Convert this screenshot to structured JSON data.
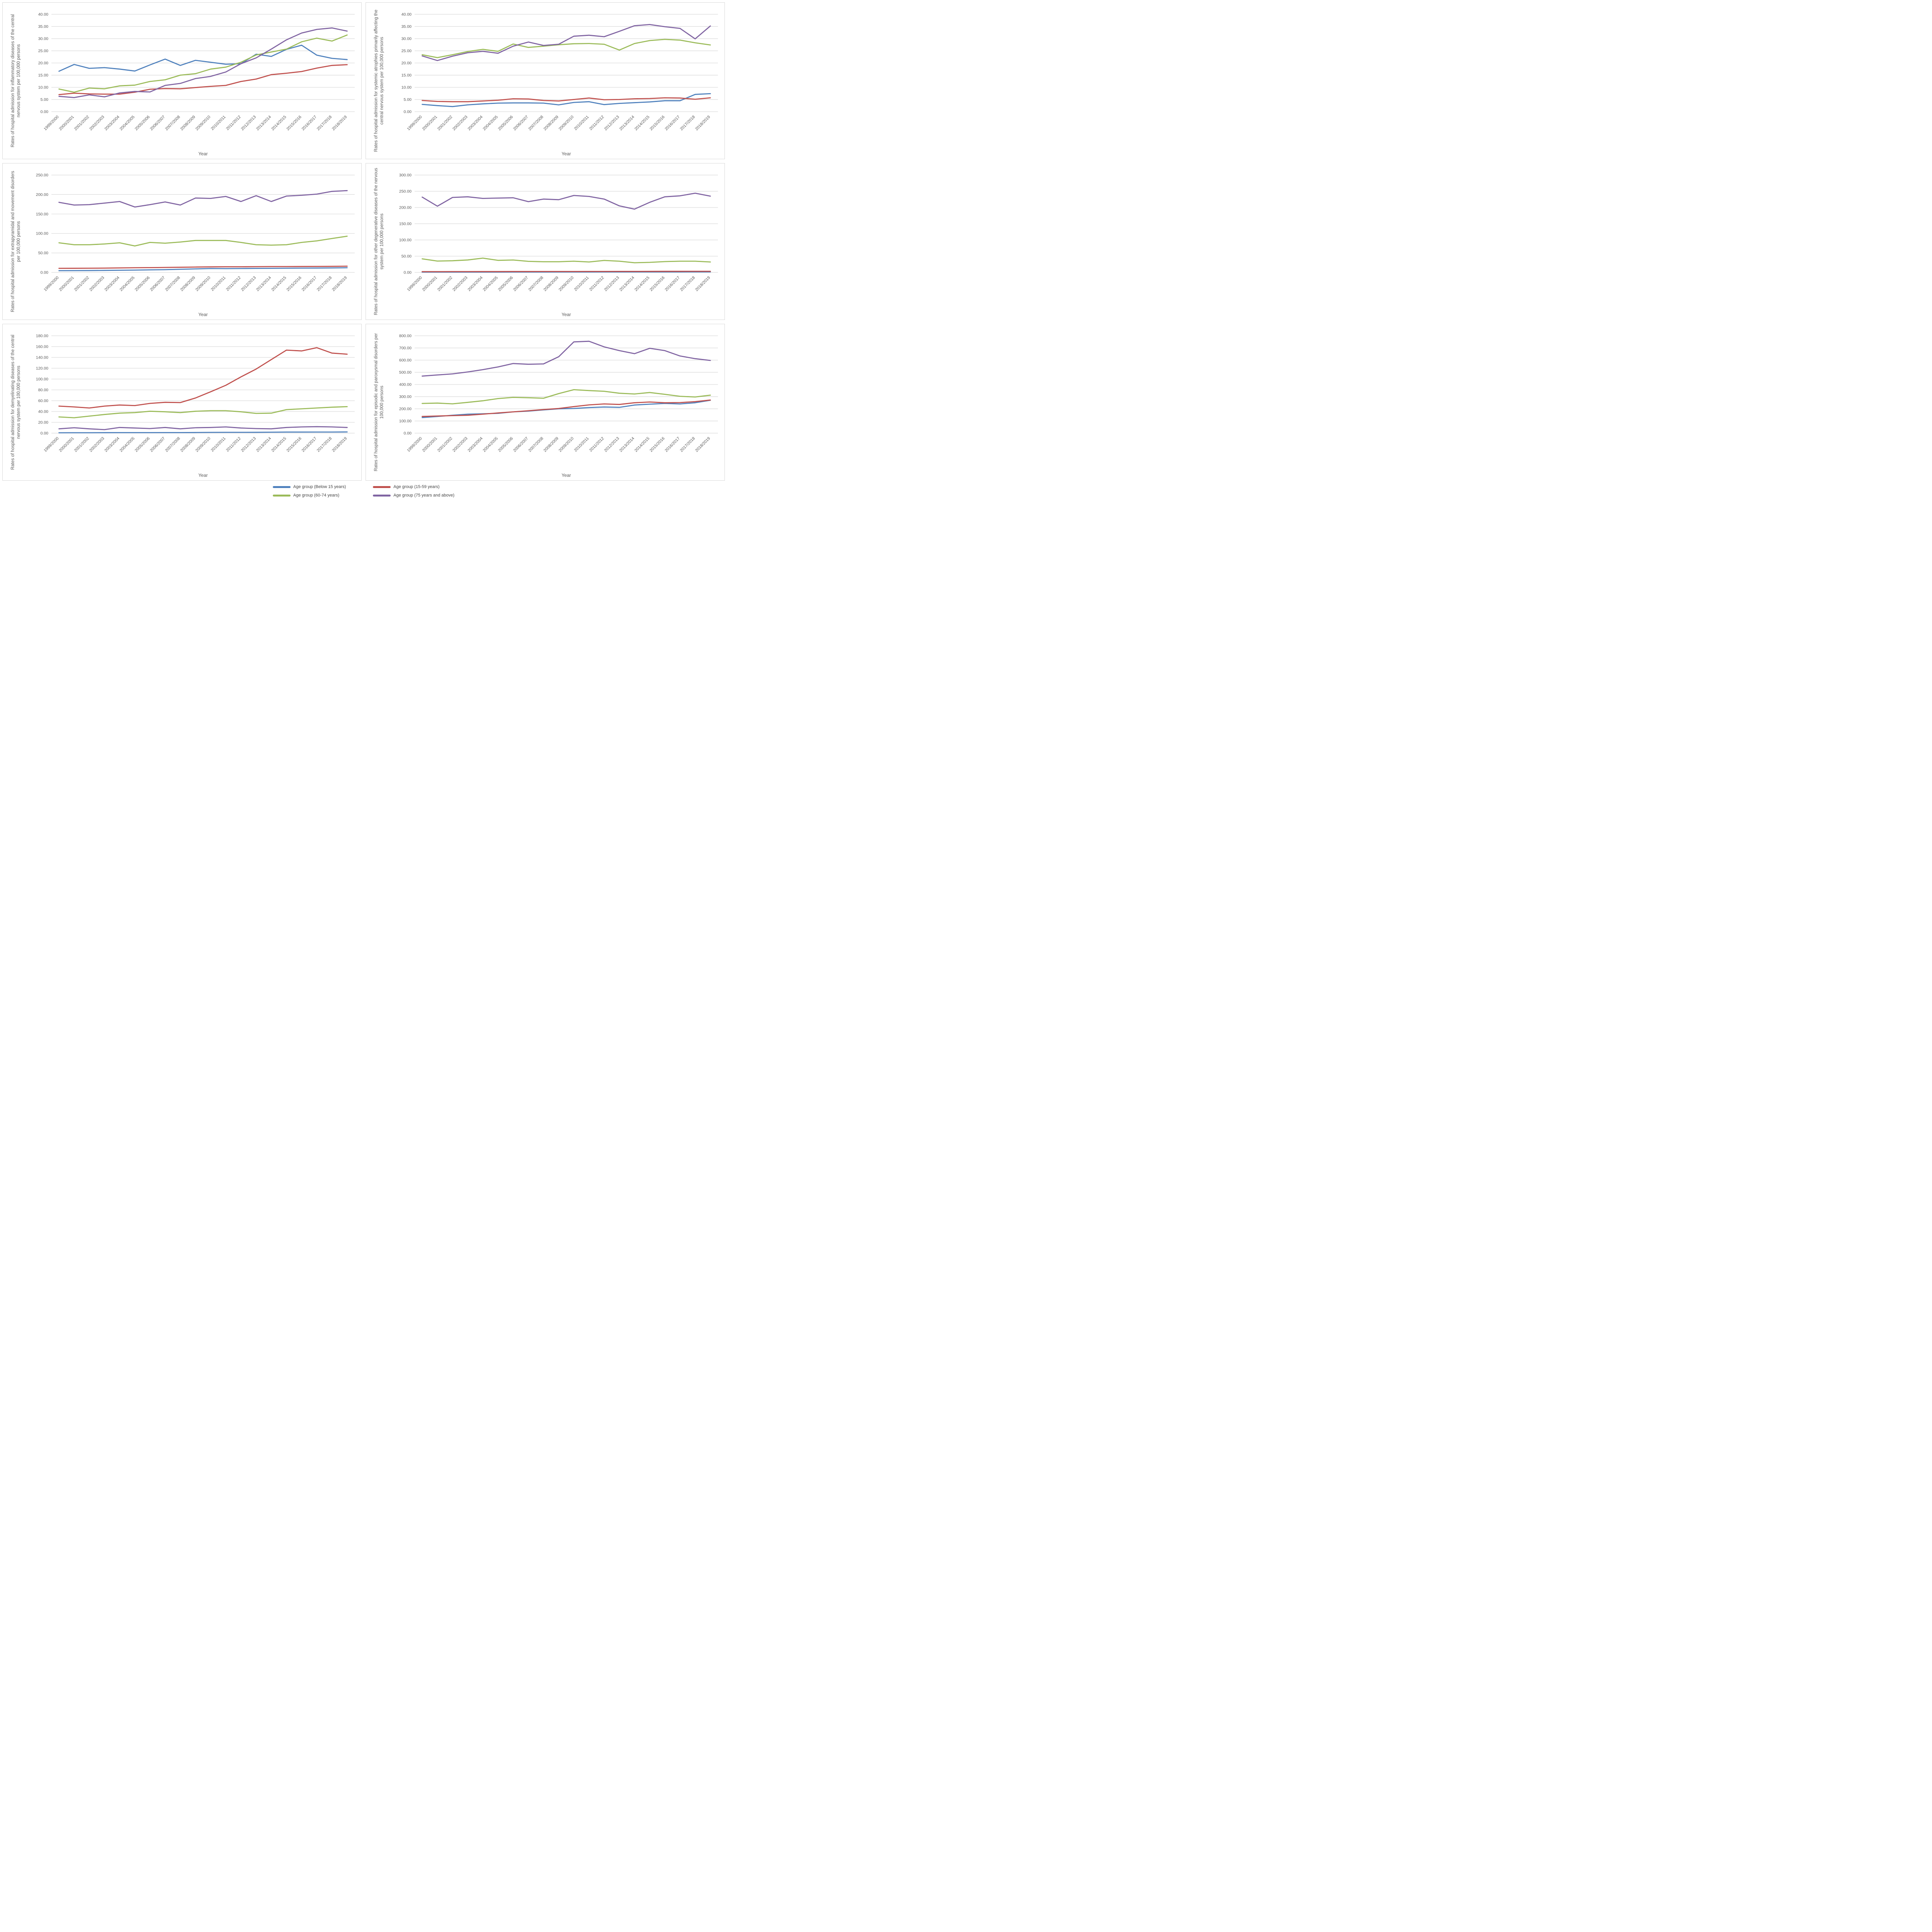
{
  "page": {
    "background": "#ffffff",
    "text_color": "#595959",
    "gridline_color": "#d9d9d9",
    "panel_border_color": "#d9d9d9"
  },
  "x_axis": {
    "label": "Year",
    "categories": [
      "1999/2000",
      "2000/2001",
      "2001/2002",
      "2002/2003",
      "2003/2004",
      "2004/2005",
      "2005/2006",
      "2006/2007",
      "2007/2008",
      "2008/2009",
      "2009/2010",
      "2010/2011",
      "2011/2012",
      "2012/2013",
      "2013/2014",
      "2014/2015",
      "2015/2016",
      "2016/2017",
      "2017/2018",
      "2018/2019"
    ]
  },
  "legend": {
    "position": "bottom",
    "items": [
      {
        "key": "below15",
        "label": "Age group (Below 15 years)",
        "color": "#4F81BD"
      },
      {
        "key": "15_59",
        "label": "Age group (15-59 years)",
        "color": "#C0504D"
      },
      {
        "key": "60_74",
        "label": "Age group (60-74 years)",
        "color": "#9BBB59"
      },
      {
        "key": "75_above",
        "label": "Age group (75 years and above)",
        "color": "#8064A2"
      }
    ]
  },
  "chart_data": [
    {
      "type": "line",
      "title": "Rates of hospital admission for inflammatory diseases of the central nervous system per 100,000 persons",
      "xlabel": "Year",
      "ylabel": "Rates of hospital admission for inflammatory diseases of the central nervous system per 100,000 persons",
      "ylim": [
        0,
        40
      ],
      "ystep": 5,
      "grid": true,
      "legend_position": "bottom",
      "series": [
        {
          "name": "Age group (Below 15 years)",
          "key": "below15",
          "color": "#4F81BD",
          "values": [
            16.6,
            19.4,
            17.8,
            18.1,
            17.5,
            16.7,
            19.2,
            21.6,
            19.0,
            21.1,
            20.3,
            19.5,
            19.7,
            23.6,
            22.7,
            25.6,
            27.3,
            23.2,
            21.9,
            21.4
          ]
        },
        {
          "name": "Age group (15-59 years)",
          "key": "15_59",
          "color": "#C0504D",
          "values": [
            7.0,
            7.6,
            7.3,
            7.2,
            7.2,
            8.0,
            9.2,
            9.5,
            9.4,
            9.9,
            10.4,
            10.8,
            12.4,
            13.4,
            15.2,
            15.8,
            16.5,
            17.9,
            19.0,
            19.3
          ]
        },
        {
          "name": "Age group (60-74 years)",
          "key": "60_74",
          "color": "#9BBB59",
          "values": [
            9.3,
            8.0,
            9.7,
            9.4,
            10.6,
            10.9,
            12.4,
            13.1,
            15.0,
            15.6,
            17.5,
            18.3,
            20.3,
            23.3,
            24.5,
            25.7,
            28.7,
            30.2,
            29.0,
            31.5
          ]
        },
        {
          "name": "Age group (75 years and above)",
          "key": "75_above",
          "color": "#8064A2",
          "values": [
            6.3,
            5.8,
            6.9,
            6.1,
            7.7,
            8.3,
            8.1,
            10.8,
            11.6,
            13.6,
            14.5,
            16.3,
            19.7,
            22.1,
            25.7,
            29.5,
            32.3,
            33.8,
            34.4,
            33.1
          ]
        }
      ]
    },
    {
      "type": "line",
      "title": "Rates of hospital admission for systemic atrophies primarily affecting the central nervous system per 100,000 persons",
      "xlabel": "Year",
      "ylabel": "Rates of hospital admission for systemic atrophies primarily affecting the central nervous system per 100,000 persons",
      "ylim": [
        0,
        40
      ],
      "ystep": 5,
      "grid": true,
      "legend_position": "bottom",
      "series": [
        {
          "name": "Age group (Below 15 years)",
          "key": "below15",
          "color": "#4F81BD",
          "values": [
            3.0,
            2.5,
            2.1,
            2.8,
            3.2,
            3.5,
            3.6,
            3.6,
            3.5,
            2.8,
            3.8,
            4.1,
            2.9,
            3.4,
            3.7,
            4.0,
            4.5,
            4.5,
            7.1,
            7.4
          ]
        },
        {
          "name": "Age group (15-59 years)",
          "key": "15_59",
          "color": "#C0504D",
          "values": [
            4.6,
            4.2,
            4.1,
            4.1,
            4.4,
            4.7,
            5.3,
            5.2,
            4.6,
            4.4,
            5.0,
            5.6,
            4.9,
            5.0,
            5.3,
            5.4,
            5.7,
            5.6,
            5.1,
            5.7
          ]
        },
        {
          "name": "Age group (60-74 years)",
          "key": "60_74",
          "color": "#9BBB59",
          "values": [
            23.4,
            22.2,
            23.4,
            24.7,
            25.6,
            24.8,
            27.8,
            26.4,
            26.9,
            27.5,
            27.9,
            28.0,
            27.7,
            25.3,
            28.0,
            29.2,
            29.7,
            29.4,
            28.3,
            27.4
          ]
        },
        {
          "name": "Age group (75 years and above)",
          "key": "75_above",
          "color": "#8064A2",
          "values": [
            22.9,
            21.0,
            22.8,
            24.2,
            24.8,
            24.0,
            26.9,
            28.6,
            27.2,
            27.7,
            31.0,
            31.4,
            30.8,
            33.0,
            35.3,
            35.8,
            34.9,
            34.2,
            29.9,
            35.2
          ]
        }
      ]
    },
    {
      "type": "line",
      "title": "Rates of hospital admission for extrapyramidal and movement disorders per 100,000 persons",
      "xlabel": "Year",
      "ylabel": "Rates of hospital admission for extrapyramidal and movement disorders per 100,000 persons",
      "ylim": [
        0,
        250
      ],
      "ystep": 50,
      "grid": true,
      "legend_position": "bottom",
      "series": [
        {
          "name": "Age group (Below 15 years)",
          "key": "below15",
          "color": "#4F81BD",
          "values": [
            4.5,
            4.6,
            4.8,
            5.2,
            5.6,
            6.0,
            6.5,
            7.0,
            8.0,
            9.0,
            10.0,
            9.8,
            10.0,
            10.3,
            10.5,
            10.8,
            11.0,
            11.2,
            11.5,
            12.0
          ]
        },
        {
          "name": "Age group (15-59 years)",
          "key": "15_59",
          "color": "#C0504D",
          "values": [
            10.5,
            10.6,
            10.8,
            11.0,
            11.5,
            12.0,
            12.3,
            12.8,
            13.2,
            13.8,
            14.2,
            14.5,
            14.5,
            14.8,
            15.0,
            15.0,
            15.2,
            15.4,
            15.6,
            16.0
          ]
        },
        {
          "name": "Age group (60-74 years)",
          "key": "60_74",
          "color": "#9BBB59",
          "values": [
            76,
            71,
            71,
            73,
            76,
            68,
            77,
            75,
            78,
            82,
            82,
            82,
            77,
            71,
            70,
            71,
            77,
            81,
            87,
            93
          ]
        },
        {
          "name": "Age group (75 years and above)",
          "key": "75_above",
          "color": "#8064A2",
          "values": [
            180,
            173,
            174,
            178,
            182,
            168,
            174,
            181,
            173,
            191,
            190,
            195,
            182,
            197,
            182,
            196,
            198,
            201,
            208,
            210
          ]
        }
      ]
    },
    {
      "type": "line",
      "title": "Rates of hospital admission for other degenerative diseases of the nervous system per 100,000 persons",
      "xlabel": "Year",
      "ylabel": "Rates of hospital admission for other degenerative diseases of the nervous system per 100,000 persons",
      "ylim": [
        0,
        300
      ],
      "ystep": 50,
      "grid": true,
      "legend_position": "bottom",
      "series": [
        {
          "name": "Age group (Below 15 years)",
          "key": "below15",
          "color": "#4F81BD",
          "values": [
            0.9,
            0.9,
            1.0,
            1.0,
            1.0,
            1.0,
            1.1,
            1.1,
            1.1,
            1.2,
            1.2,
            1.2,
            1.3,
            1.3,
            1.3,
            1.4,
            1.4,
            1.4,
            1.5,
            1.5
          ]
        },
        {
          "name": "Age group (15-59 years)",
          "key": "15_59",
          "color": "#C0504D",
          "values": [
            2.4,
            2.4,
            2.5,
            2.5,
            2.6,
            2.6,
            2.7,
            2.7,
            2.8,
            2.8,
            2.9,
            3.0,
            3.0,
            3.1,
            3.1,
            3.2,
            3.3,
            3.3,
            3.4,
            3.5
          ]
        },
        {
          "name": "Age group (60-74 years)",
          "key": "60_74",
          "color": "#9BBB59",
          "values": [
            41.8,
            35.0,
            35.9,
            38.3,
            44.1,
            37.1,
            38.2,
            34.1,
            32.9,
            32.9,
            34.5,
            32.1,
            36.9,
            34.5,
            29.8,
            31.0,
            33.3,
            34.5,
            34.5,
            32.1
          ]
        },
        {
          "name": "Age group (75 years and above)",
          "key": "75_above",
          "color": "#8064A2",
          "values": [
            232,
            204,
            231,
            233,
            228,
            229,
            230,
            218,
            226,
            224,
            237,
            234,
            226,
            205,
            195,
            216,
            233,
            236,
            244,
            235
          ]
        }
      ]
    },
    {
      "type": "line",
      "title": "Rates of hospital admission for demyelinating diseases of the central nervous system per 100,000 persons",
      "xlabel": "Year",
      "ylabel": "Rates of hospital admission for demyelinating diseases of the central nervous system per 100,000 persons",
      "ylim": [
        0,
        180
      ],
      "ystep": 20,
      "grid": true,
      "legend_position": "bottom",
      "series": [
        {
          "name": "Age group (Below 15 years)",
          "key": "below15",
          "color": "#4F81BD",
          "values": [
            0.7,
            0.8,
            0.8,
            0.9,
            1.0,
            1.0,
            1.0,
            1.1,
            1.1,
            1.2,
            1.4,
            1.5,
            1.5,
            1.6,
            1.8,
            2.0,
            2.0,
            2.1,
            2.1,
            2.2
          ]
        },
        {
          "name": "Age group (15-59 years)",
          "key": "15_59",
          "color": "#C0504D",
          "values": [
            50,
            48.5,
            46.5,
            50,
            52,
            51,
            55,
            57,
            56.5,
            65,
            76.5,
            88.5,
            104,
            118.5,
            136,
            153.5,
            152,
            158,
            148,
            146
          ]
        },
        {
          "name": "Age group (60-74 years)",
          "key": "60_74",
          "color": "#9BBB59",
          "values": [
            30,
            28.5,
            31.5,
            34.5,
            37,
            38,
            40.5,
            39.5,
            38,
            40.5,
            41.5,
            41.5,
            39.5,
            36.5,
            37,
            43.5,
            45,
            46.5,
            48,
            49
          ]
        },
        {
          "name": "Age group (75 years and above)",
          "key": "75_above",
          "color": "#8064A2",
          "values": [
            8,
            10,
            8,
            6.5,
            10.5,
            9.5,
            8.5,
            10.5,
            8,
            10,
            10.5,
            11.5,
            9.5,
            8.5,
            8,
            10.5,
            11.5,
            12,
            11.5,
            10.5
          ]
        }
      ]
    },
    {
      "type": "line",
      "title": "Rates of hospital admission for episodic and paroxysmal disorders per 100,000 persons",
      "xlabel": "Year",
      "ylabel": "Rates of hospital admission for episodic and paroxysmal disorders per 100,000 persons",
      "ylim": [
        0,
        800
      ],
      "ystep": 100,
      "grid": true,
      "legend_position": "bottom",
      "series": [
        {
          "name": "Age group (Below 15 years)",
          "key": "below15",
          "color": "#4F81BD",
          "values": [
            128,
            137,
            147,
            156,
            159,
            163,
            175,
            181,
            191,
            200,
            203,
            210,
            215,
            212,
            231,
            238,
            244,
            240,
            250,
            270
          ]
        },
        {
          "name": "Age group (15-59 years)",
          "key": "15_59",
          "color": "#C0504D",
          "values": [
            137,
            141,
            144,
            147,
            156,
            166,
            175,
            184,
            194,
            203,
            218,
            232,
            240,
            236,
            250,
            256,
            250,
            251,
            259,
            272
          ]
        },
        {
          "name": "Age group (60-74 years)",
          "key": "60_74",
          "color": "#9BBB59",
          "values": [
            244,
            247,
            241,
            253,
            266,
            284,
            294,
            291,
            287,
            325,
            357,
            350,
            344,
            328,
            322,
            334,
            319,
            303,
            297,
            312
          ]
        },
        {
          "name": "Age group (75 years and above)",
          "key": "75_above",
          "color": "#8064A2",
          "values": [
            469,
            478,
            487,
            503,
            522,
            544,
            572,
            566,
            569,
            628,
            750,
            755,
            709,
            678,
            653,
            697,
            678,
            634,
            612,
            597
          ]
        }
      ]
    }
  ]
}
